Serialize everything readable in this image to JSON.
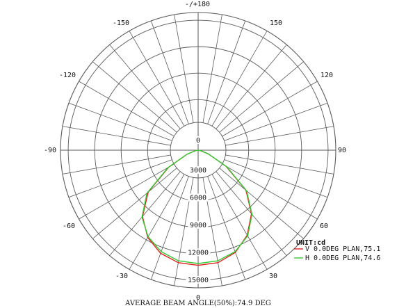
{
  "chart_data": {
    "type": "polar",
    "title": "",
    "unit_label": "UNIT:cd",
    "footer": "AVERAGE BEAM ANGLE(50%):74.9 DEG",
    "angle_labels": [
      {
        "angle": 180,
        "text": "-/+180"
      },
      {
        "angle": -150,
        "text": "-150"
      },
      {
        "angle": 150,
        "text": "150"
      },
      {
        "angle": -120,
        "text": "-120"
      },
      {
        "angle": 120,
        "text": "120"
      },
      {
        "angle": -90,
        "text": "-90"
      },
      {
        "angle": 90,
        "text": "90"
      },
      {
        "angle": -60,
        "text": "-60"
      },
      {
        "angle": 60,
        "text": "60"
      },
      {
        "angle": -30,
        "text": "-30"
      },
      {
        "angle": 30,
        "text": "30"
      },
      {
        "angle": 0,
        "text": "0"
      }
    ],
    "radial_labels": [
      "0",
      "3000",
      "6000",
      "9000",
      "12000",
      "15000"
    ],
    "rmax": 15000,
    "grid": true,
    "legend_position": "bottom-right",
    "series": [
      {
        "name": "V 0.0DEG PLAN,75.1",
        "color": "#e02020",
        "points": [
          [
            -90,
            0
          ],
          [
            -80,
            300
          ],
          [
            -70,
            1300
          ],
          [
            -60,
            3800
          ],
          [
            -50,
            7300
          ],
          [
            -40,
            9700
          ],
          [
            -30,
            11300
          ],
          [
            -20,
            12300
          ],
          [
            -10,
            12800
          ],
          [
            0,
            12900
          ],
          [
            10,
            12800
          ],
          [
            20,
            12200
          ],
          [
            30,
            11000
          ],
          [
            40,
            9300
          ],
          [
            50,
            7000
          ],
          [
            60,
            3600
          ],
          [
            70,
            1200
          ],
          [
            80,
            300
          ],
          [
            90,
            0
          ]
        ]
      },
      {
        "name": "H 0.0DEG PLAN,74.6",
        "color": "#33cc33",
        "points": [
          [
            -90,
            0
          ],
          [
            -80,
            300
          ],
          [
            -70,
            1300
          ],
          [
            -60,
            3900
          ],
          [
            -50,
            7500
          ],
          [
            -40,
            9800
          ],
          [
            -30,
            11200
          ],
          [
            -20,
            12100
          ],
          [
            -10,
            12600
          ],
          [
            0,
            12700
          ],
          [
            10,
            12600
          ],
          [
            20,
            12100
          ],
          [
            30,
            11100
          ],
          [
            40,
            9400
          ],
          [
            50,
            7100
          ],
          [
            60,
            3700
          ],
          [
            70,
            1200
          ],
          [
            80,
            300
          ],
          [
            90,
            0
          ]
        ]
      }
    ]
  }
}
